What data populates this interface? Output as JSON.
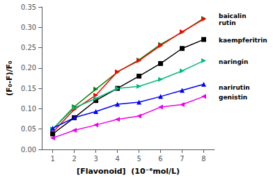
{
  "chart_data": {
    "type": "line",
    "x_label": "[Flavonoid]  (10⁻⁶mol/L)",
    "y_label": "(F₀-F)/F₀",
    "x": [
      1,
      2,
      3,
      4,
      5,
      6,
      7,
      8
    ],
    "series": [
      {
        "name": "baicalin",
        "color": "#008000",
        "marker": "triangle-right",
        "values": [
          0.05,
          0.105,
          0.148,
          0.19,
          0.22,
          0.258,
          0.288,
          0.322
        ]
      },
      {
        "name": "rutin",
        "color": "#ff0000",
        "marker": "triangle-right",
        "values": [
          0.042,
          0.098,
          0.133,
          0.191,
          0.218,
          0.255,
          0.289,
          0.32
        ]
      },
      {
        "name": "kaempferitrin",
        "color": "#000000",
        "marker": "square",
        "values": [
          0.038,
          0.078,
          0.12,
          0.15,
          0.18,
          0.211,
          0.248,
          0.27
        ]
      },
      {
        "name": "naringin",
        "color": "#00bb77",
        "marker": "triangle-right",
        "values": [
          0.05,
          0.102,
          0.125,
          0.15,
          0.155,
          0.172,
          0.193,
          0.218
        ]
      },
      {
        "name": "narirutin",
        "color": "#0000ff",
        "marker": "triangle-up",
        "values": [
          0.052,
          0.078,
          0.093,
          0.111,
          0.116,
          0.13,
          0.145,
          0.16
        ]
      },
      {
        "name": "genistin",
        "color": "#ee00ee",
        "marker": "triangle-left",
        "values": [
          0.028,
          0.047,
          0.06,
          0.074,
          0.082,
          0.104,
          0.11,
          0.13
        ]
      }
    ],
    "annotations": [
      {
        "text": "baicalin",
        "y": 0.327
      },
      {
        "text": "rutin",
        "y": 0.31
      },
      {
        "text": "kaempferitrin",
        "y": 0.268
      },
      {
        "text": "naringin",
        "y": 0.215
      },
      {
        "text": "narirutin",
        "y": 0.152
      },
      {
        "text": "genistin",
        "y": 0.128
      }
    ],
    "xlim": [
      0.5,
      8.5
    ],
    "xticks": [
      1,
      2,
      3,
      4,
      5,
      6,
      7,
      8
    ],
    "ylim": [
      0.0,
      0.35
    ],
    "yticks": [
      {
        "value": 0.0,
        "label": "0.00"
      },
      0.05,
      {
        "value": 0.1,
        "label": "0.10"
      },
      0.15,
      {
        "value": 0.2,
        "label": "0.20"
      },
      0.25,
      {
        "value": 0.3,
        "label": "0.30"
      },
      0.35
    ],
    "grid": false
  }
}
